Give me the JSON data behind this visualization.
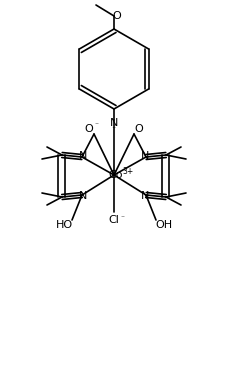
{
  "bg_color": "#ffffff",
  "line_color": "#000000",
  "lw": 1.2,
  "figsize": [
    2.28,
    3.67
  ],
  "dpi": 100,
  "xlim": [
    0,
    228
  ],
  "ylim": [
    0,
    367
  ]
}
